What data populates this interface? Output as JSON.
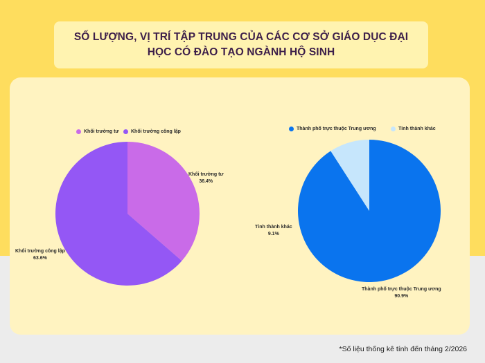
{
  "title": "SỐ LƯỢNG, VỊ TRÍ TẬP TRUNG CỦA CÁC CƠ SỞ GIÁO DỤC ĐẠI HỌC CÓ ĐÀO TẠO NGÀNH HỘ SINH",
  "footnote": "*Số liệu thống kê tính đến tháng 2/2026",
  "chart_data": [
    {
      "type": "pie",
      "title": "",
      "legend_position": "top",
      "series": [
        {
          "name": "Khối trường tư",
          "value": 36.4,
          "label": "36.4%",
          "color": "#c96be8"
        },
        {
          "name": "Khối trường công lập",
          "value": 63.6,
          "label": "63.6%",
          "color": "#9457f5"
        }
      ]
    },
    {
      "type": "pie",
      "title": "",
      "legend_position": "top",
      "series": [
        {
          "name": "Thành phố trực thuộc Trung ương",
          "value": 90.9,
          "label": "90.9%",
          "color": "#0a74ee"
        },
        {
          "name": "Tỉnh thành khác",
          "value": 9.1,
          "label": "9.1%",
          "color": "#c6e6fc"
        }
      ]
    }
  ]
}
